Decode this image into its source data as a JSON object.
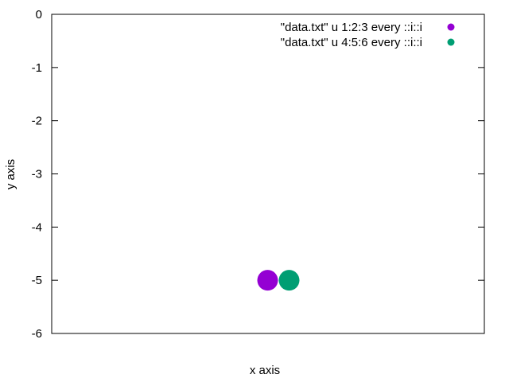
{
  "chart_data": {
    "type": "scatter",
    "xlabel": "x axis",
    "ylabel": "y axis",
    "ylim": [
      -6,
      0
    ],
    "yticks": [
      "0",
      "-1",
      "-2",
      "-3",
      "-4",
      "-5",
      "-6"
    ],
    "xticks": [],
    "grid": false,
    "legend_position": "top-right",
    "series": [
      {
        "name": "\"data.txt\" u 1:2:3 every ::i::i",
        "color": "#9400d3",
        "marker": "circle",
        "points": [
          {
            "x": 0,
            "y": -5
          }
        ]
      },
      {
        "name": "\"data.txt\" u 4:5:6 every ::i::i",
        "color": "#009e73",
        "marker": "circle",
        "points": [
          {
            "x": 0,
            "y": -5
          }
        ]
      }
    ]
  }
}
